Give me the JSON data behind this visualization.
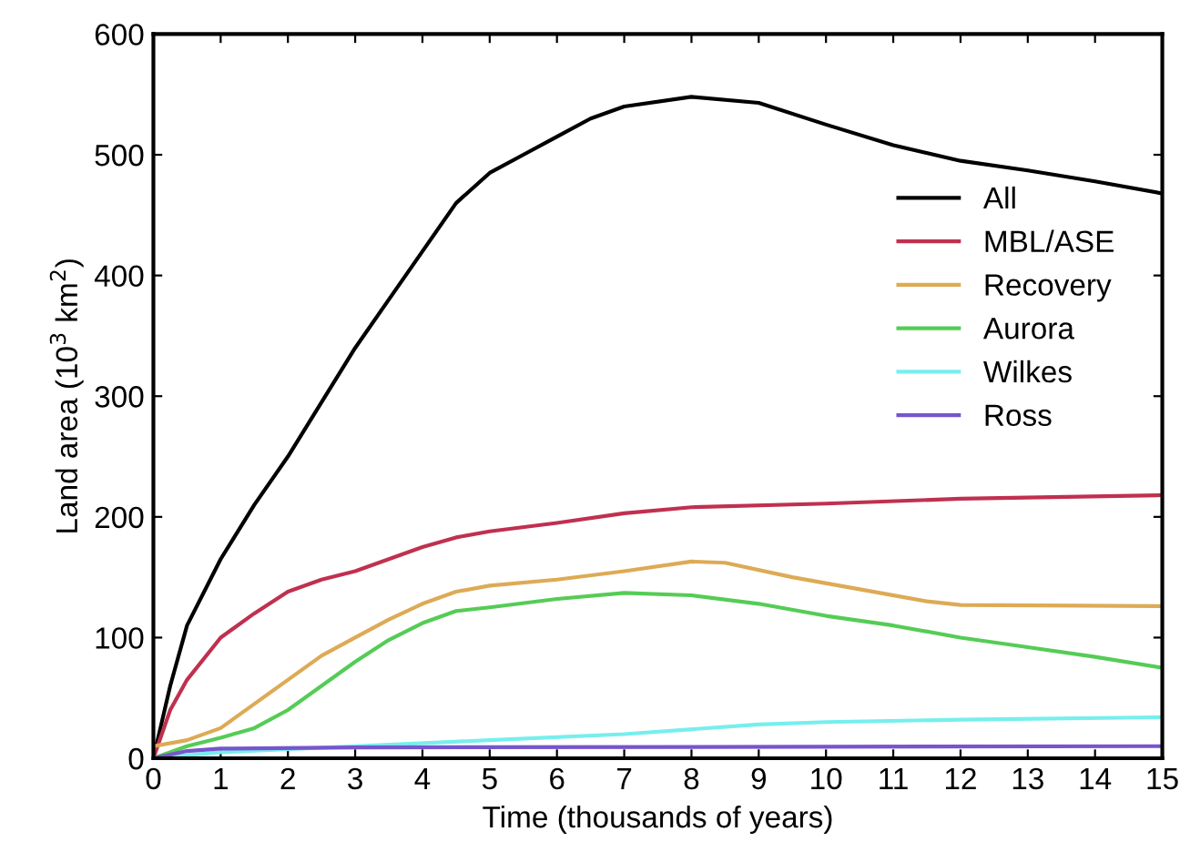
{
  "chart_data": {
    "type": "line",
    "xlabel": "Time (thousands of years)",
    "ylabel": "Land area (10$^{3}$ km$^{2}$)",
    "xlim": [
      0,
      15
    ],
    "ylim": [
      0,
      600
    ],
    "xticks": [
      0,
      1,
      2,
      3,
      4,
      5,
      6,
      7,
      8,
      9,
      10,
      11,
      12,
      13,
      14,
      15
    ],
    "yticks": [
      0,
      100,
      200,
      300,
      400,
      500,
      600
    ],
    "grid": false,
    "legend": "right",
    "marker": "none",
    "line_style": "solid",
    "series": [
      {
        "name": "All",
        "color": "#000000",
        "x": [
          0,
          0.25,
          0.5,
          1,
          1.5,
          2,
          2.5,
          3,
          3.5,
          4,
          4.5,
          5,
          5.5,
          6,
          6.5,
          7,
          8,
          9,
          10,
          11,
          12,
          13,
          14,
          15
        ],
        "values": [
          0,
          60,
          110,
          165,
          210,
          250,
          295,
          340,
          380,
          420,
          460,
          485,
          500,
          515,
          530,
          540,
          548,
          543,
          525,
          508,
          495,
          487,
          478,
          468
        ]
      },
      {
        "name": "MBL/ASE",
        "color": "#c0304f",
        "x": [
          0,
          0.25,
          0.5,
          1,
          1.5,
          2,
          2.5,
          3,
          3.5,
          4,
          4.5,
          5,
          6,
          7,
          8,
          10,
          12,
          15
        ],
        "values": [
          0,
          40,
          65,
          100,
          120,
          138,
          148,
          155,
          165,
          175,
          183,
          188,
          195,
          203,
          208,
          211,
          215,
          218
        ]
      },
      {
        "name": "Recovery",
        "color": "#ddaa55",
        "x": [
          0,
          0.5,
          1,
          1.5,
          2,
          2.5,
          3,
          3.5,
          4,
          4.5,
          5,
          6,
          7,
          8,
          8.5,
          9.5,
          10.5,
          11.5,
          12,
          15
        ],
        "values": [
          10,
          15,
          25,
          45,
          65,
          85,
          100,
          115,
          128,
          138,
          143,
          148,
          155,
          163,
          162,
          150,
          140,
          130,
          127,
          126
        ]
      },
      {
        "name": "Aurora",
        "color": "#55cc55",
        "x": [
          0,
          0.5,
          1,
          1.5,
          2,
          2.5,
          3,
          3.5,
          4,
          4.5,
          5,
          6,
          7,
          8,
          9,
          10,
          11,
          12,
          13,
          14,
          15
        ],
        "values": [
          0,
          10,
          17,
          25,
          40,
          60,
          80,
          98,
          112,
          122,
          125,
          132,
          137,
          135,
          128,
          118,
          110,
          100,
          92,
          84,
          75
        ]
      },
      {
        "name": "Wilkes",
        "color": "#77eeee",
        "x": [
          0,
          1,
          3,
          5,
          7,
          9,
          10,
          12,
          15
        ],
        "values": [
          0,
          5,
          10,
          15,
          20,
          28,
          30,
          32,
          34
        ]
      },
      {
        "name": "Ross",
        "color": "#7755cc",
        "x": [
          0,
          0.5,
          1,
          3,
          15
        ],
        "values": [
          0,
          6,
          8,
          9,
          10
        ]
      }
    ]
  }
}
